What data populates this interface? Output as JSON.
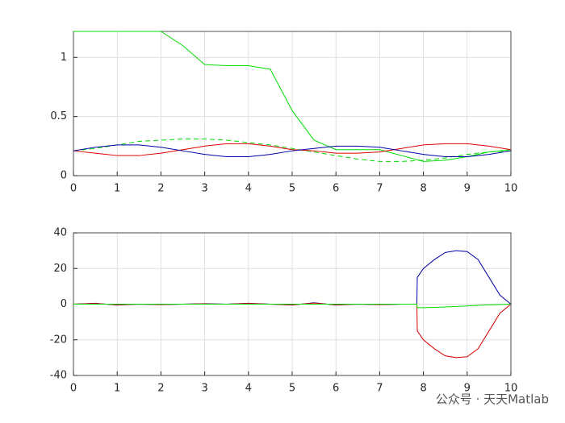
{
  "chart_data": [
    {
      "type": "line",
      "x": [
        0,
        0.5,
        1,
        1.5,
        2,
        2.5,
        3,
        3.5,
        4,
        4.5,
        5,
        5.5,
        6,
        6.5,
        7,
        7.5,
        8,
        8.5,
        9,
        9.5,
        10
      ],
      "series": [
        {
          "color": "#00dd00",
          "line_style": "solid",
          "values": [
            1.22,
            1.22,
            1.22,
            1.22,
            1.22,
            1.1,
            0.94,
            0.93,
            0.93,
            0.9,
            0.55,
            0.3,
            0.22,
            0.22,
            0.22,
            0.17,
            0.12,
            0.13,
            0.16,
            0.2,
            0.22
          ]
        },
        {
          "color": "#00dd00",
          "line_style": "dashed",
          "values": [
            0.21,
            0.23,
            0.26,
            0.29,
            0.3,
            0.31,
            0.31,
            0.3,
            0.28,
            0.26,
            0.23,
            0.2,
            0.17,
            0.14,
            0.12,
            0.12,
            0.13,
            0.15,
            0.18,
            0.2,
            0.21
          ]
        },
        {
          "color": "#dd0000",
          "line_style": "solid",
          "values": [
            0.21,
            0.19,
            0.17,
            0.17,
            0.19,
            0.22,
            0.25,
            0.27,
            0.27,
            0.25,
            0.22,
            0.21,
            0.19,
            0.19,
            0.2,
            0.23,
            0.26,
            0.27,
            0.27,
            0.25,
            0.22
          ]
        },
        {
          "color": "#0000aa",
          "line_style": "solid",
          "values": [
            0.21,
            0.24,
            0.26,
            0.26,
            0.24,
            0.21,
            0.18,
            0.16,
            0.16,
            0.18,
            0.21,
            0.23,
            0.25,
            0.25,
            0.24,
            0.21,
            0.18,
            0.16,
            0.16,
            0.18,
            0.21
          ]
        }
      ],
      "xlim": [
        0,
        10
      ],
      "xticks": [
        0,
        1,
        2,
        3,
        4,
        5,
        6,
        7,
        8,
        9,
        10
      ],
      "ylim": [
        0,
        1.22
      ],
      "yticks": [
        0,
        0.5,
        1
      ],
      "grid": true
    },
    {
      "type": "line",
      "x": [
        0,
        0.5,
        1,
        1.5,
        2,
        2.5,
        3,
        3.5,
        4,
        4.5,
        5,
        5.5,
        6,
        6.5,
        7,
        7.5,
        7.85,
        7.86,
        8,
        8.25,
        8.5,
        8.75,
        9,
        9.25,
        9.5,
        9.75,
        10
      ],
      "series": [
        {
          "color": "#0000aa",
          "line_style": "solid",
          "values": [
            0,
            0.5,
            -0.5,
            0,
            -0.3,
            0,
            0.3,
            0,
            0.5,
            0,
            -0.5,
            0.8,
            -0.5,
            0,
            -0.3,
            0,
            0,
            15,
            20,
            25,
            29,
            30,
            29.5,
            25,
            15,
            5,
            0
          ]
        },
        {
          "color": "#dd0000",
          "line_style": "solid",
          "values": [
            0,
            0.4,
            -0.4,
            0,
            -0.2,
            0,
            0.2,
            0,
            0.4,
            0,
            -0.4,
            0.6,
            -0.4,
            0,
            -0.2,
            0,
            0,
            -15,
            -20,
            -25,
            -29,
            -30,
            -29.5,
            -25,
            -15,
            -5,
            0
          ]
        },
        {
          "color": "#00dd00",
          "line_style": "solid",
          "values": [
            0,
            0,
            0,
            0,
            0,
            0,
            0,
            0,
            0,
            0,
            0,
            0,
            0,
            0,
            0,
            0,
            0,
            -2,
            -2,
            -1.8,
            -1.6,
            -1.3,
            -1,
            -0.7,
            -0.4,
            -0.2,
            0
          ]
        }
      ],
      "xlim": [
        0,
        10
      ],
      "xticks": [
        0,
        1,
        2,
        3,
        4,
        5,
        6,
        7,
        8,
        9,
        10
      ],
      "ylim": [
        -40,
        40
      ],
      "yticks": [
        -40,
        -20,
        0,
        20,
        40
      ],
      "grid": true
    }
  ],
  "watermark": "公众号 · 天天Matlab"
}
